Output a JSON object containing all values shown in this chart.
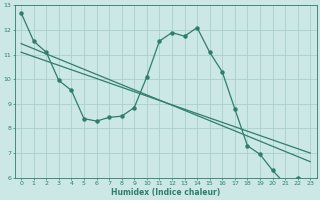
{
  "xlabel": "Humidex (Indice chaleur)",
  "xlim": [
    -0.5,
    23.5
  ],
  "ylim": [
    6,
    13
  ],
  "xticks": [
    0,
    1,
    2,
    3,
    4,
    5,
    6,
    7,
    8,
    9,
    10,
    11,
    12,
    13,
    14,
    15,
    16,
    17,
    18,
    19,
    20,
    21,
    22,
    23
  ],
  "yticks": [
    6,
    7,
    8,
    9,
    10,
    11,
    12,
    13
  ],
  "bg_color": "#cce8e6",
  "grid_color": "#aacfcc",
  "line_color": "#2e7d6e",
  "curve1_x": [
    0,
    1,
    2,
    3,
    4,
    5,
    6,
    7,
    8,
    9,
    10,
    11,
    12,
    13,
    14,
    15,
    16,
    17,
    18,
    19,
    20,
    21,
    22,
    23
  ],
  "curve1_y": [
    12.7,
    11.55,
    11.1,
    9.95,
    9.55,
    8.4,
    8.3,
    8.45,
    8.5,
    8.85,
    10.1,
    11.55,
    11.9,
    11.75,
    12.1,
    11.1,
    10.3,
    8.8,
    7.3,
    6.95,
    6.3,
    5.75,
    6.0,
    5.85
  ],
  "reg_line1_x": [
    0,
    23
  ],
  "reg_line1_y": [
    11.45,
    6.65
  ],
  "reg_line2_x": [
    0,
    23
  ],
  "reg_line2_y": [
    11.1,
    7.0
  ],
  "marker_size": 2.2,
  "line_width": 0.9
}
